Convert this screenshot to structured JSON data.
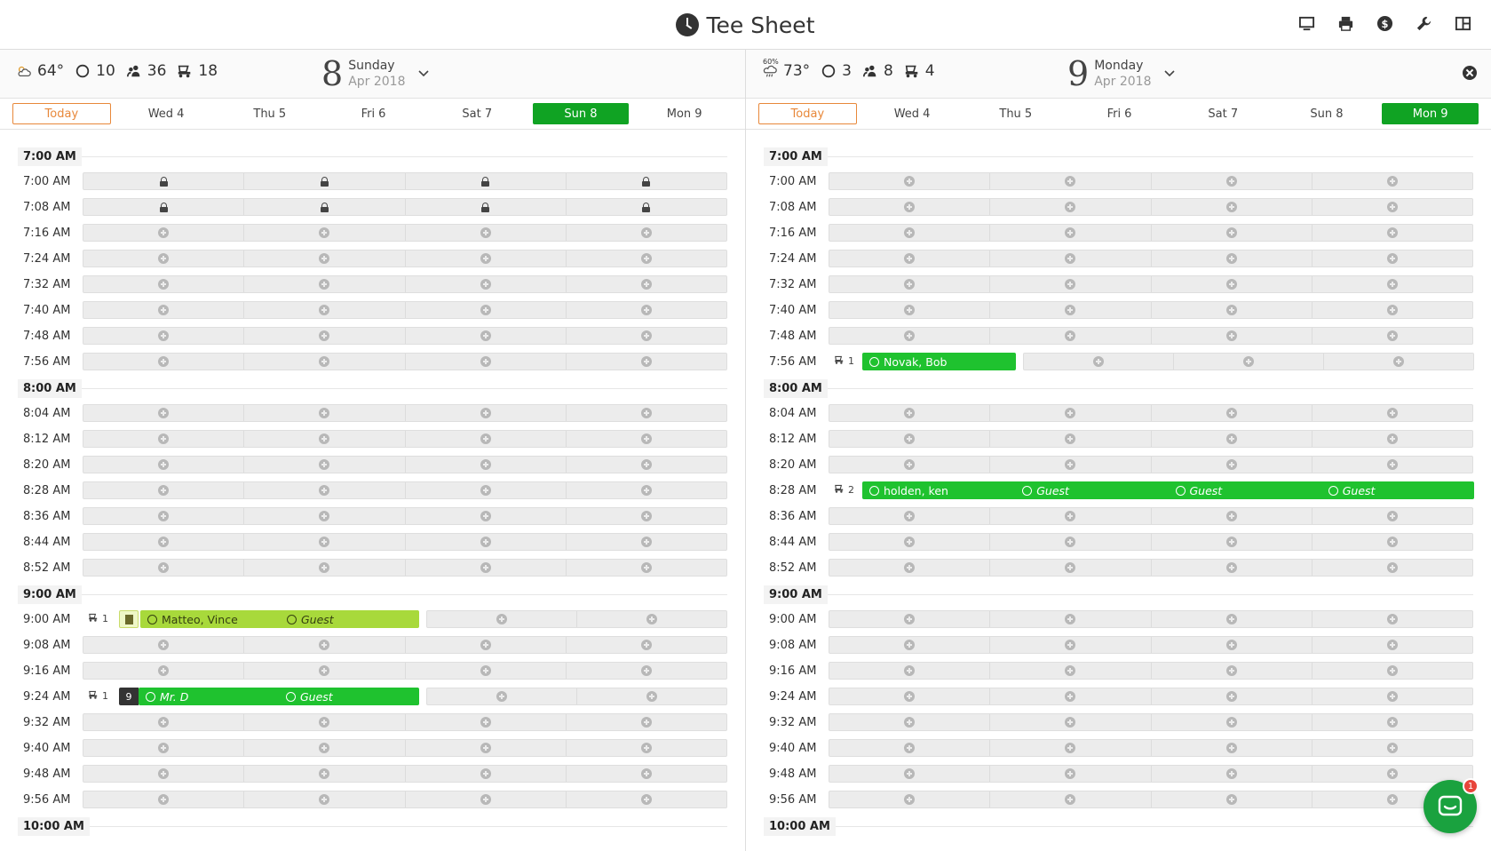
{
  "app": {
    "title": "Tee Sheet"
  },
  "toolbar": [
    "monitor-icon",
    "printer-icon",
    "dollar-icon",
    "wrench-icon",
    "layout-icon"
  ],
  "chat": {
    "badge": "1"
  },
  "panels": [
    {
      "weather": {
        "temp": "64°",
        "precip": ""
      },
      "stats": {
        "rounds": "10",
        "players": "36",
        "carts": "18"
      },
      "date": {
        "day": "8",
        "dow": "Sunday",
        "month": "Apr 2018"
      },
      "closable": false,
      "tabs": [
        {
          "label": "Today",
          "state": "today"
        },
        {
          "label": "Wed 4",
          "state": ""
        },
        {
          "label": "Thu 5",
          "state": ""
        },
        {
          "label": "Fri 6",
          "state": ""
        },
        {
          "label": "Sat 7",
          "state": ""
        },
        {
          "label": "Sun 8",
          "state": "active"
        },
        {
          "label": "Mon 9",
          "state": ""
        }
      ],
      "rows": [
        {
          "type": "hour",
          "label": "7:00 AM"
        },
        {
          "type": "slot",
          "time": "7:00 AM",
          "locked": true
        },
        {
          "type": "slot",
          "time": "7:08 AM",
          "locked": true
        },
        {
          "type": "slot",
          "time": "7:16 AM"
        },
        {
          "type": "slot",
          "time": "7:24 AM"
        },
        {
          "type": "slot",
          "time": "7:32 AM"
        },
        {
          "type": "slot",
          "time": "7:40 AM"
        },
        {
          "type": "slot",
          "time": "7:48 AM"
        },
        {
          "type": "slot",
          "time": "7:56 AM"
        },
        {
          "type": "hour",
          "label": "8:00 AM"
        },
        {
          "type": "slot",
          "time": "8:04 AM"
        },
        {
          "type": "slot",
          "time": "8:12 AM"
        },
        {
          "type": "slot",
          "time": "8:20 AM"
        },
        {
          "type": "slot",
          "time": "8:28 AM"
        },
        {
          "type": "slot",
          "time": "8:36 AM"
        },
        {
          "type": "slot",
          "time": "8:44 AM"
        },
        {
          "type": "slot",
          "time": "8:52 AM"
        },
        {
          "type": "hour",
          "label": "9:00 AM"
        },
        {
          "type": "booking",
          "time": "9:00 AM",
          "carts": "1",
          "tag": "note",
          "color": "lime",
          "players": [
            {
              "name": "Matteo, Vince",
              "guest": false
            },
            {
              "name": "Guest",
              "guest": true
            }
          ],
          "open": 2
        },
        {
          "type": "slot",
          "time": "9:08 AM"
        },
        {
          "type": "slot",
          "time": "9:16 AM"
        },
        {
          "type": "booking",
          "time": "9:24 AM",
          "carts": "1",
          "tag": "holes",
          "holes": "9",
          "color": "green",
          "players": [
            {
              "name": "Mr. D",
              "guest": true
            },
            {
              "name": "Guest",
              "guest": true
            }
          ],
          "open": 2
        },
        {
          "type": "slot",
          "time": "9:32 AM"
        },
        {
          "type": "slot",
          "time": "9:40 AM"
        },
        {
          "type": "slot",
          "time": "9:48 AM"
        },
        {
          "type": "slot",
          "time": "9:56 AM"
        },
        {
          "type": "hour",
          "label": "10:00 AM"
        }
      ]
    },
    {
      "weather": {
        "temp": "73°",
        "precip": "60%"
      },
      "stats": {
        "rounds": "3",
        "players": "8",
        "carts": "4"
      },
      "date": {
        "day": "9",
        "dow": "Monday",
        "month": "Apr 2018"
      },
      "closable": true,
      "tabs": [
        {
          "label": "Today",
          "state": "today"
        },
        {
          "label": "Wed 4",
          "state": ""
        },
        {
          "label": "Thu 5",
          "state": ""
        },
        {
          "label": "Fri 6",
          "state": ""
        },
        {
          "label": "Sat 7",
          "state": ""
        },
        {
          "label": "Sun 8",
          "state": ""
        },
        {
          "label": "Mon 9",
          "state": "active"
        }
      ],
      "rows": [
        {
          "type": "hour",
          "label": "7:00 AM"
        },
        {
          "type": "slot",
          "time": "7:00 AM"
        },
        {
          "type": "slot",
          "time": "7:08 AM"
        },
        {
          "type": "slot",
          "time": "7:16 AM"
        },
        {
          "type": "slot",
          "time": "7:24 AM"
        },
        {
          "type": "slot",
          "time": "7:32 AM"
        },
        {
          "type": "slot",
          "time": "7:40 AM"
        },
        {
          "type": "slot",
          "time": "7:48 AM"
        },
        {
          "type": "booking",
          "time": "7:56 AM",
          "carts": "1",
          "tag": "",
          "color": "green",
          "players": [
            {
              "name": "Novak, Bob",
              "guest": false
            }
          ],
          "open": 3
        },
        {
          "type": "hour",
          "label": "8:00 AM"
        },
        {
          "type": "slot",
          "time": "8:04 AM"
        },
        {
          "type": "slot",
          "time": "8:12 AM"
        },
        {
          "type": "slot",
          "time": "8:20 AM"
        },
        {
          "type": "booking",
          "time": "8:28 AM",
          "carts": "2",
          "tag": "",
          "color": "green",
          "players": [
            {
              "name": "holden, ken",
              "guest": false
            },
            {
              "name": "Guest",
              "guest": true
            },
            {
              "name": "Guest",
              "guest": true
            },
            {
              "name": "Guest",
              "guest": true
            }
          ],
          "open": 0
        },
        {
          "type": "slot",
          "time": "8:36 AM"
        },
        {
          "type": "slot",
          "time": "8:44 AM"
        },
        {
          "type": "slot",
          "time": "8:52 AM"
        },
        {
          "type": "hour",
          "label": "9:00 AM"
        },
        {
          "type": "slot",
          "time": "9:00 AM"
        },
        {
          "type": "slot",
          "time": "9:08 AM"
        },
        {
          "type": "slot",
          "time": "9:16 AM"
        },
        {
          "type": "slot",
          "time": "9:24 AM"
        },
        {
          "type": "slot",
          "time": "9:32 AM"
        },
        {
          "type": "slot",
          "time": "9:40 AM"
        },
        {
          "type": "slot",
          "time": "9:48 AM"
        },
        {
          "type": "slot",
          "time": "9:56 AM"
        },
        {
          "type": "hour",
          "label": "10:00 AM"
        }
      ]
    }
  ]
}
